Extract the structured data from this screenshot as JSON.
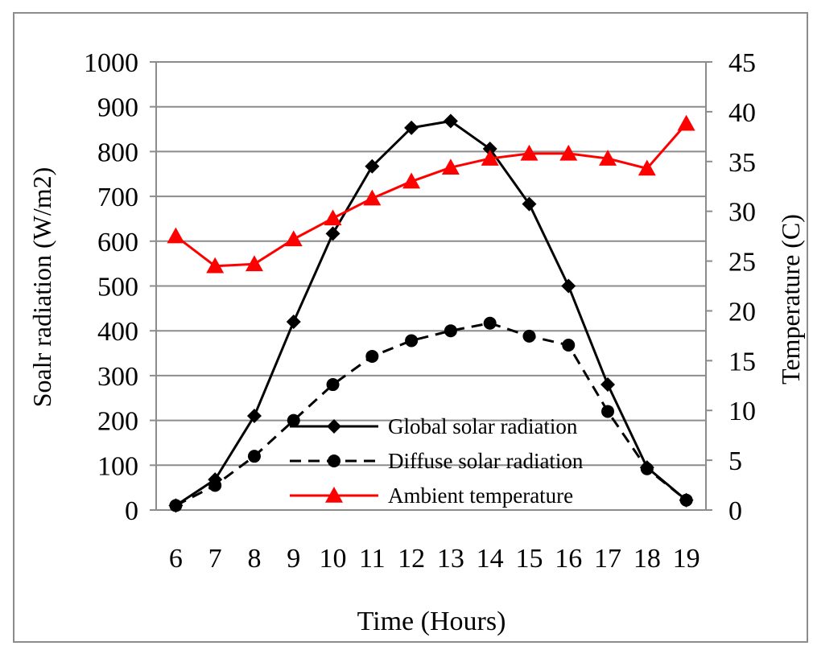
{
  "chart_data": {
    "type": "line",
    "title": "",
    "xlabel": "Time (Hours)",
    "ylabel": "Soalr radiation (W/m2)",
    "y2label": "Temperature (C)",
    "x": [
      6,
      7,
      8,
      9,
      10,
      11,
      12,
      13,
      14,
      15,
      16,
      17,
      18,
      19
    ],
    "ylim": [
      0,
      1000
    ],
    "y2lim": [
      0,
      45
    ],
    "yticks": [
      "0",
      "100",
      "200",
      "300",
      "400",
      "500",
      "600",
      "700",
      "800",
      "900",
      "1000"
    ],
    "y2ticks": [
      "0",
      "5",
      "10",
      "15",
      "20",
      "25",
      "30",
      "35",
      "40",
      "45"
    ],
    "grid": true,
    "legend_position": "bottom-center",
    "series": [
      {
        "name": "Global solar radiation",
        "axis": "left",
        "color": "#000000",
        "marker": "diamond",
        "dash": "solid",
        "values": [
          10,
          68,
          210,
          420,
          617,
          767,
          853,
          868,
          806,
          683,
          500,
          280,
          95,
          22
        ]
      },
      {
        "name": "Diffuse solar radiation",
        "axis": "left",
        "color": "#000000",
        "marker": "circle",
        "dash": "dashed",
        "values": [
          10,
          55,
          120,
          200,
          280,
          343,
          378,
          400,
          417,
          388,
          368,
          220,
          92,
          22
        ]
      },
      {
        "name": "Ambient temperature",
        "axis": "right",
        "color": "#ff0000",
        "marker": "triangle",
        "dash": "solid",
        "values": [
          27.5,
          24.5,
          24.7,
          27.2,
          29.3,
          31.3,
          33.0,
          34.4,
          35.3,
          35.8,
          35.8,
          35.3,
          34.3,
          38.8
        ]
      }
    ]
  }
}
